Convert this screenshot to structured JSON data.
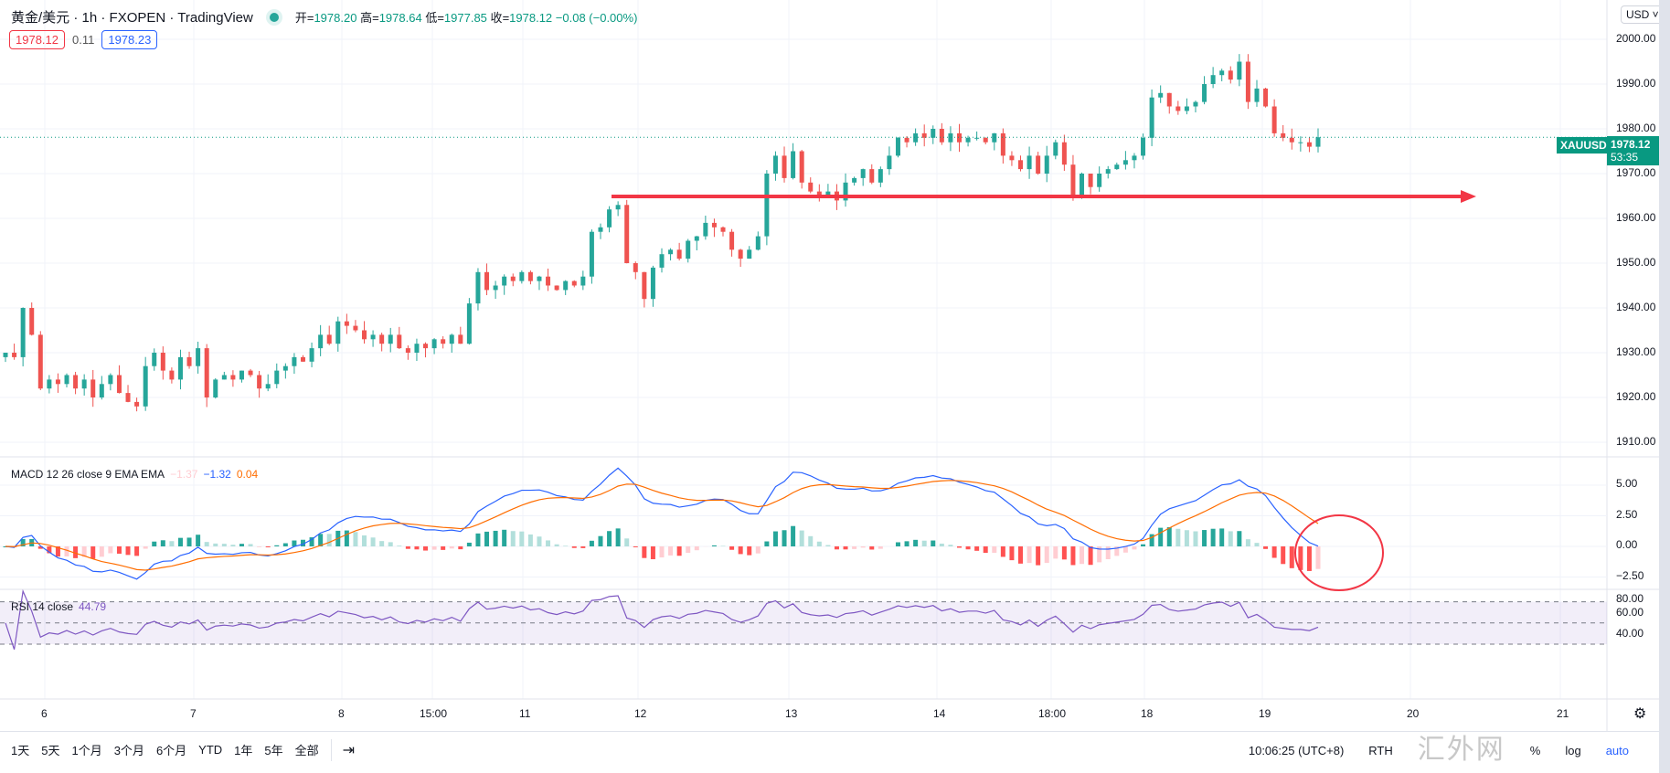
{
  "header": {
    "symbol": "黄金/美元",
    "interval": "1h",
    "exchange": "FXOPEN",
    "source": "TradingView",
    "ohlc": [
      {
        "label": "开",
        "value": "1978.20"
      },
      {
        "label": "高",
        "value": "1978.64"
      },
      {
        "label": "低",
        "value": "1977.85"
      },
      {
        "label": "收",
        "value": "1978.12"
      }
    ],
    "change": "−0.08 (−0.00%)",
    "bid": "1978.12",
    "spread": "0.11",
    "ask": "1978.23"
  },
  "currency": "USD",
  "last_price": {
    "symbol": "XAUUSD",
    "price": "1978.12",
    "countdown": "53:35"
  },
  "price_axis": [
    "2000.00",
    "1990.00",
    "1980.00",
    "1970.00",
    "1960.00",
    "1950.00",
    "1940.00",
    "1930.00",
    "1920.00",
    "1910.00"
  ],
  "macd": {
    "label": "MACD 12 26 close 9 EMA EMA",
    "hist": "−1.37",
    "macd": "−1.32",
    "signal": "0.04",
    "axis": [
      "5.00",
      "2.50",
      "0.00",
      "−2.50"
    ]
  },
  "rsi": {
    "label": "RSI 14 close",
    "value": "44.79",
    "axis": [
      "80.00",
      "60.00",
      "40.00"
    ]
  },
  "time_axis": [
    "6",
    "7",
    "8",
    "15:00",
    "11",
    "12",
    "13",
    "14",
    "18:00",
    "18",
    "19",
    "20",
    "21"
  ],
  "toolbar": {
    "ranges": [
      "1天",
      "5天",
      "1个月",
      "3个月",
      "6个月",
      "YTD",
      "1年",
      "5年",
      "全部"
    ],
    "clock": "10:06:25 (UTC+8)",
    "rth": "RTH",
    "percent": "%",
    "log": "log",
    "auto": "auto"
  },
  "watermark": "汇外网",
  "colors": {
    "up": "#26a69a",
    "down": "#ef5350",
    "macd": "#2962ff",
    "signal": "#ff6d00",
    "rsi": "#7e57c2",
    "annotation": "#f23645"
  },
  "annotations": {
    "horizontal_arrow_price": 1964.9,
    "circle": "MACD histogram end"
  },
  "chart_data": {
    "type": "candlestick",
    "interval": "1h",
    "ylim": [
      1905,
      2005
    ],
    "closes": [
      1930,
      1929,
      1940,
      1934,
      1922,
      1924,
      1923,
      1925,
      1922,
      1924,
      1920,
      1923,
      1925,
      1921,
      1919,
      1918,
      1927,
      1930,
      1926,
      1924,
      1929,
      1927,
      1931,
      1920,
      1924,
      1925,
      1924,
      1926,
      1925,
      1922,
      1923,
      1926,
      1927,
      1929,
      1928,
      1931,
      1934,
      1932,
      1937,
      1936,
      1935,
      1933,
      1934,
      1932,
      1934,
      1931,
      1930,
      1932,
      1931,
      1933,
      1932,
      1934,
      1932,
      1941,
      1948,
      1944,
      1945,
      1947,
      1946,
      1948,
      1946,
      1947,
      1945,
      1944,
      1946,
      1945,
      1947,
      1957,
      1958,
      1962,
      1963,
      1950,
      1948,
      1942,
      1949,
      1952,
      1953,
      1951,
      1955,
      1956,
      1959,
      1958,
      1957,
      1953,
      1951,
      1953,
      1956,
      1970,
      1974,
      1969,
      1975,
      1968,
      1966,
      1965,
      1966,
      1964,
      1968,
      1969,
      1971,
      1968,
      1971,
      1974,
      1978,
      1977,
      1979,
      1978,
      1980,
      1977,
      1979,
      1977,
      1978,
      1978,
      1977,
      1979,
      1974,
      1973,
      1971,
      1974,
      1970,
      1974,
      1977,
      1972,
      1965,
      1970,
      1967,
      1970,
      1971,
      1972,
      1973,
      1974,
      1978,
      1987,
      1988,
      1985,
      1984,
      1985,
      1986,
      1990,
      1992,
      1993,
      1991,
      1995,
      1986,
      1989,
      1985,
      1979,
      1978,
      1977,
      1977,
      1976,
      1978.12
    ]
  }
}
